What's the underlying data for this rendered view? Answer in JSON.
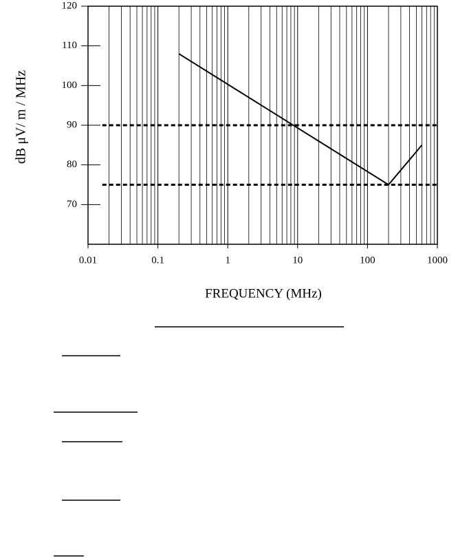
{
  "chart_data": {
    "type": "line",
    "x_label": "FREQUENCY (MHz)",
    "y_label": "dB μV/ m / MHz",
    "xlim": [
      0.01,
      1000
    ],
    "ylim": [
      60,
      120
    ],
    "log_x": true,
    "minor_grid_x": true,
    "xticks": [
      0.01,
      0.1,
      1,
      10,
      100,
      1000
    ],
    "yticks": [
      70,
      80,
      90,
      100,
      110,
      120
    ],
    "series": [
      {
        "x": [
          0.2,
          200,
          600
        ],
        "values": [
          108,
          75,
          85
        ],
        "color": "#000000",
        "dashed": false
      },
      {
        "x": [
          0.016,
          1000
        ],
        "values": [
          90,
          90
        ],
        "color": "#000000",
        "dashed": true
      },
      {
        "x": [
          0.016,
          1000
        ],
        "values": [
          75,
          75
        ],
        "color": "#000000",
        "dashed": true
      }
    ]
  }
}
